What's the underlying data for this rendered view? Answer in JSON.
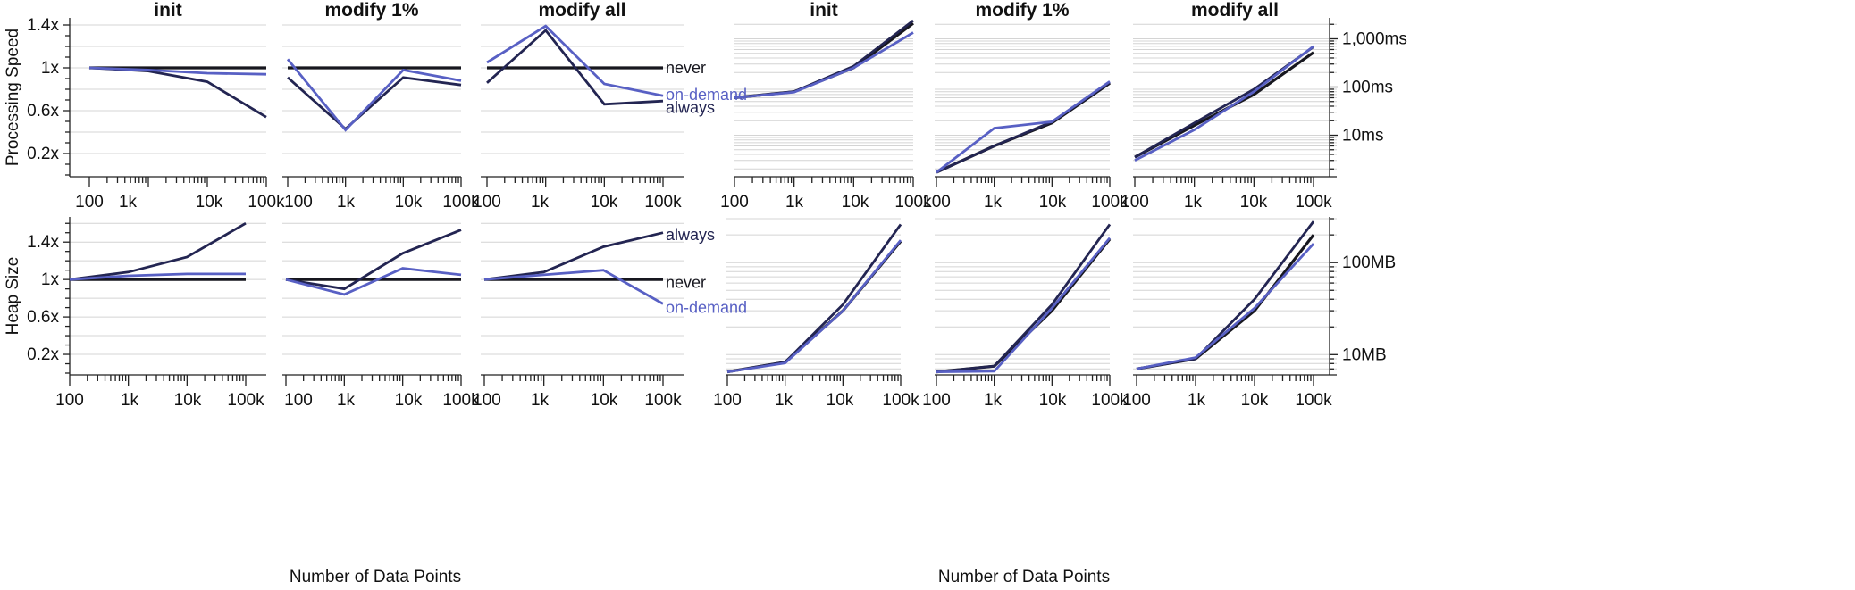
{
  "chart_data": [
    {
      "id": "speed-rel",
      "type": "line",
      "ylabel": "Processing Speed",
      "xlabel": "Number of Data Points",
      "y_ticks": [
        {
          "v": 0.2,
          "label": "0.2x"
        },
        {
          "v": 0.6,
          "label": "0.6x"
        },
        {
          "v": 1.0,
          "label": "1x"
        },
        {
          "v": 1.4,
          "label": "1.4x"
        }
      ],
      "y_grid": [
        0.2,
        0.4,
        0.6,
        0.8,
        1.0,
        1.2,
        1.4
      ],
      "ylim": [
        0.0,
        1.45
      ],
      "series_labels_right": [
        {
          "series": "never",
          "text": "never",
          "y": 1.0
        },
        {
          "series": "on-demand",
          "text": "on-demand",
          "y": 0.75
        },
        {
          "series": "always",
          "text": "always",
          "y": 0.63
        }
      ],
      "panels": [
        {
          "title": "init",
          "x": [
            100,
            1000,
            10000,
            100000
          ],
          "x_tick_labels": [
            "100",
            "1k",
            "10k",
            "100k"
          ],
          "series": [
            {
              "name": "never",
              "values": [
                1.0,
                1.0,
                1.0,
                1.0
              ]
            },
            {
              "name": "always",
              "values": [
                1.0,
                0.97,
                0.87,
                0.54
              ]
            },
            {
              "name": "on-demand",
              "values": [
                1.0,
                0.98,
                0.95,
                0.94
              ]
            }
          ]
        },
        {
          "title": "modify 1%",
          "x": [
            100,
            1000,
            10000,
            100000
          ],
          "x_tick_labels": [
            "100",
            "1k",
            "10k",
            "100k"
          ],
          "series": [
            {
              "name": "never",
              "values": [
                1.0,
                1.0,
                1.0,
                1.0
              ]
            },
            {
              "name": "always",
              "values": [
                0.91,
                0.43,
                0.91,
                0.84
              ]
            },
            {
              "name": "on-demand",
              "values": [
                1.08,
                0.42,
                0.98,
                0.88
              ]
            }
          ]
        },
        {
          "title": "modify all",
          "x": [
            100,
            1000,
            10000,
            100000
          ],
          "x_tick_labels": [
            "100",
            "1k",
            "10k",
            "100k"
          ],
          "series": [
            {
              "name": "never",
              "values": [
                1.0,
                1.0,
                1.0,
                1.0
              ]
            },
            {
              "name": "always",
              "values": [
                0.86,
                1.35,
                0.66,
                0.69
              ]
            },
            {
              "name": "on-demand",
              "values": [
                1.05,
                1.39,
                0.85,
                0.74
              ]
            }
          ]
        }
      ]
    },
    {
      "id": "speed-abs",
      "type": "line",
      "scale": "log",
      "xlabel": "Number of Data Points",
      "ylim": [
        1.5,
        2500
      ],
      "y_ticks": [
        {
          "v": 10,
          "label": "10ms"
        },
        {
          "v": 100,
          "label": "100ms"
        },
        {
          "v": 1000,
          "label": "1,000ms"
        }
      ],
      "panels": [
        {
          "title": "init",
          "x": [
            100,
            1000,
            10000,
            100000
          ],
          "x_tick_labels": [
            "100",
            "1k",
            "10k",
            "100k"
          ],
          "series": [
            {
              "name": "never",
              "values": [
                60,
                80,
                250,
                2100
              ]
            },
            {
              "name": "always",
              "values": [
                60,
                80,
                270,
                2400
              ]
            },
            {
              "name": "on-demand",
              "values": [
                60,
                78,
                250,
                1350
              ]
            }
          ]
        },
        {
          "title": "modify 1%",
          "x": [
            100,
            1000,
            10000,
            100000
          ],
          "x_tick_labels": [
            "100",
            "1k",
            "10k",
            "100k"
          ],
          "series": [
            {
              "name": "never",
              "values": [
                1.7,
                6,
                18,
                120
              ]
            },
            {
              "name": "always",
              "values": [
                1.7,
                6,
                19,
                125
              ]
            },
            {
              "name": "on-demand",
              "values": [
                1.7,
                14,
                19,
                130
              ]
            }
          ]
        },
        {
          "title": "modify all",
          "x": [
            100,
            1000,
            10000,
            100000
          ],
          "x_tick_labels": [
            "100",
            "1k",
            "10k",
            "100k"
          ],
          "series": [
            {
              "name": "never",
              "values": [
                3.5,
                16,
                70,
                520
              ]
            },
            {
              "name": "always",
              "values": [
                3.5,
                18,
                90,
                680
              ]
            },
            {
              "name": "on-demand",
              "values": [
                3,
                13,
                80,
                700
              ]
            }
          ]
        }
      ]
    },
    {
      "id": "heap-rel",
      "type": "line",
      "ylabel": "Heap Size",
      "xlabel": "Number of Data Points",
      "y_ticks": [
        {
          "v": 0.2,
          "label": "0.2x"
        },
        {
          "v": 0.6,
          "label": "0.6x"
        },
        {
          "v": 1.0,
          "label": "1x"
        },
        {
          "v": 1.4,
          "label": "1.4x"
        }
      ],
      "y_grid": [
        0.2,
        0.4,
        0.6,
        0.8,
        1.0,
        1.2,
        1.4,
        1.6
      ],
      "ylim": [
        0.0,
        1.65
      ],
      "series_labels_right": [
        {
          "series": "always",
          "text": "always",
          "y": 1.48
        },
        {
          "series": "never",
          "text": "never",
          "y": 0.97
        },
        {
          "series": "on-demand",
          "text": "on-demand",
          "y": 0.7
        }
      ],
      "panels": [
        {
          "title": "",
          "x": [
            100,
            1000,
            10000,
            100000
          ],
          "x_tick_labels": [
            "100",
            "1k",
            "10k",
            "100k"
          ],
          "series": [
            {
              "name": "never",
              "values": [
                1.0,
                1.0,
                1.0,
                1.0
              ]
            },
            {
              "name": "always",
              "values": [
                1.0,
                1.08,
                1.24,
                1.6
              ]
            },
            {
              "name": "on-demand",
              "values": [
                1.0,
                1.04,
                1.06,
                1.06
              ]
            }
          ]
        },
        {
          "title": "",
          "x": [
            100,
            1000,
            10000,
            100000
          ],
          "x_tick_labels": [
            "100",
            "1k",
            "10k",
            "100k"
          ],
          "series": [
            {
              "name": "never",
              "values": [
                1.0,
                1.0,
                1.0,
                1.0
              ]
            },
            {
              "name": "always",
              "values": [
                1.0,
                0.9,
                1.28,
                1.53
              ]
            },
            {
              "name": "on-demand",
              "values": [
                1.0,
                0.84,
                1.12,
                1.05
              ]
            }
          ]
        },
        {
          "title": "",
          "x": [
            100,
            1000,
            10000,
            100000
          ],
          "x_tick_labels": [
            "100",
            "1k",
            "10k",
            "100k"
          ],
          "series": [
            {
              "name": "never",
              "values": [
                1.0,
                1.0,
                1.0,
                1.0
              ]
            },
            {
              "name": "always",
              "values": [
                1.0,
                1.08,
                1.35,
                1.5
              ]
            },
            {
              "name": "on-demand",
              "values": [
                1.0,
                1.05,
                1.1,
                0.74
              ]
            }
          ]
        }
      ]
    },
    {
      "id": "heap-abs",
      "type": "line",
      "scale": "log",
      "xlabel": "Number of Data Points",
      "ylim": [
        6.3,
        300
      ],
      "y_ticks": [
        {
          "v": 10,
          "label": "10MB"
        },
        {
          "v": 100,
          "label": "100MB"
        }
      ],
      "panels": [
        {
          "title": "",
          "x": [
            100,
            1000,
            10000,
            100000
          ],
          "x_tick_labels": [
            "100",
            "1k",
            "10k",
            "100k"
          ],
          "series": [
            {
              "name": "never",
              "values": [
                6.5,
                8.3,
                30,
                170
              ]
            },
            {
              "name": "always",
              "values": [
                6.5,
                8.3,
                35,
                260
              ]
            },
            {
              "name": "on-demand",
              "values": [
                6.5,
                8.1,
                30,
                175
              ]
            }
          ]
        },
        {
          "title": "",
          "x": [
            100,
            1000,
            10000,
            100000
          ],
          "x_tick_labels": [
            "100",
            "1k",
            "10k",
            "100k"
          ],
          "series": [
            {
              "name": "never",
              "values": [
                6.5,
                7.5,
                30,
                180
              ]
            },
            {
              "name": "always",
              "values": [
                6.5,
                7.5,
                35,
                260
              ]
            },
            {
              "name": "on-demand",
              "values": [
                6.5,
                6.6,
                32,
                185
              ]
            }
          ]
        },
        {
          "title": "",
          "x": [
            100,
            1000,
            10000,
            100000
          ],
          "x_tick_labels": [
            "100",
            "1k",
            "10k",
            "100k"
          ],
          "series": [
            {
              "name": "never",
              "values": [
                7,
                9,
                30,
                200
              ]
            },
            {
              "name": "always",
              "values": [
                7,
                9,
                40,
                280
              ]
            },
            {
              "name": "on-demand",
              "values": [
                7,
                9.3,
                32,
                160
              ]
            }
          ]
        }
      ]
    }
  ],
  "colors": {
    "never": "#17171f",
    "always": "#232552",
    "on-demand": "#5860c4",
    "grid": "#d4d4d4",
    "axis": "#222222"
  },
  "x_axis_labels": [
    "Number of Data Points",
    "Number of Data Points"
  ]
}
